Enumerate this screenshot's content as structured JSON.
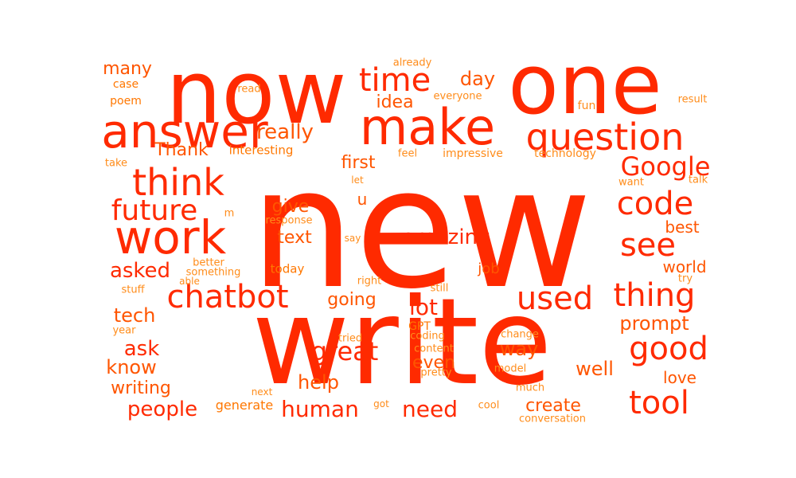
{
  "palette": {
    "primary": "#ff2a00",
    "secondary": "#ff5500",
    "tertiary": "#ff7700",
    "light": "#ff8c1a"
  },
  "words": [
    "new",
    "write",
    "now",
    "one",
    "make",
    "answer",
    "question",
    "work",
    "time",
    "think",
    "code",
    "future",
    "Google",
    "chatbot",
    "thing",
    "used",
    "see",
    "good",
    "tool",
    "amazing",
    "human",
    "great",
    "need",
    "really",
    "day",
    "idea",
    "many",
    "Thank",
    "first",
    "give",
    "text",
    "asked",
    "going",
    "lot",
    "tech",
    "ask",
    "know",
    "writing",
    "people",
    "help",
    "even",
    "way",
    "prompt",
    "well",
    "create",
    "best",
    "world",
    "love",
    "job",
    "u",
    "case",
    "poem",
    "read",
    "already",
    "everyone",
    "fun",
    "result",
    "interesting",
    "feel",
    "impressive",
    "technology",
    "take",
    "want",
    "talk",
    "let",
    "m",
    "response",
    "say",
    "today",
    "better",
    "something",
    "able",
    "right",
    "still",
    "stuff",
    "try",
    "GPT",
    "tried",
    "coding",
    "content",
    "change",
    "pretty",
    "model",
    "year",
    "next",
    "much",
    "got",
    "cool",
    "generate",
    "conversation"
  ]
}
